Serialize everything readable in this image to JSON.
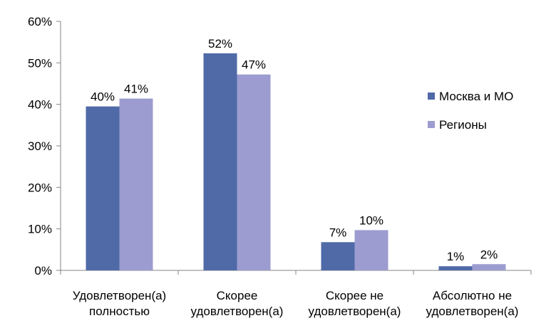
{
  "chart_data": {
    "type": "bar",
    "categories": [
      [
        "Удовлетворен(а)",
        "полностью"
      ],
      [
        "Скорее",
        "удовлетворен(а)"
      ],
      [
        "Скорее не",
        "удовлетворен(а)"
      ],
      [
        "Абсолютно не",
        "удовлетворен(а)"
      ]
    ],
    "series": [
      {
        "name": "Москва и МО",
        "color": "#4f6aa7",
        "values": [
          39.5,
          52.3,
          6.8,
          1.0
        ],
        "labels": [
          "40%",
          "52%",
          "7%",
          "1%"
        ]
      },
      {
        "name": "Регионы",
        "color": "#9c9cd0",
        "values": [
          41.4,
          47.2,
          9.7,
          1.5
        ],
        "labels": [
          "41%",
          "47%",
          "10%",
          "2%"
        ]
      }
    ],
    "y_ticks": [
      0,
      10,
      20,
      30,
      40,
      50,
      60
    ],
    "y_tick_labels": [
      "0%",
      "10%",
      "20%",
      "30%",
      "40%",
      "50%",
      "60%"
    ],
    "ylim": [
      0,
      60
    ],
    "legend_position": "right",
    "grid": false
  }
}
